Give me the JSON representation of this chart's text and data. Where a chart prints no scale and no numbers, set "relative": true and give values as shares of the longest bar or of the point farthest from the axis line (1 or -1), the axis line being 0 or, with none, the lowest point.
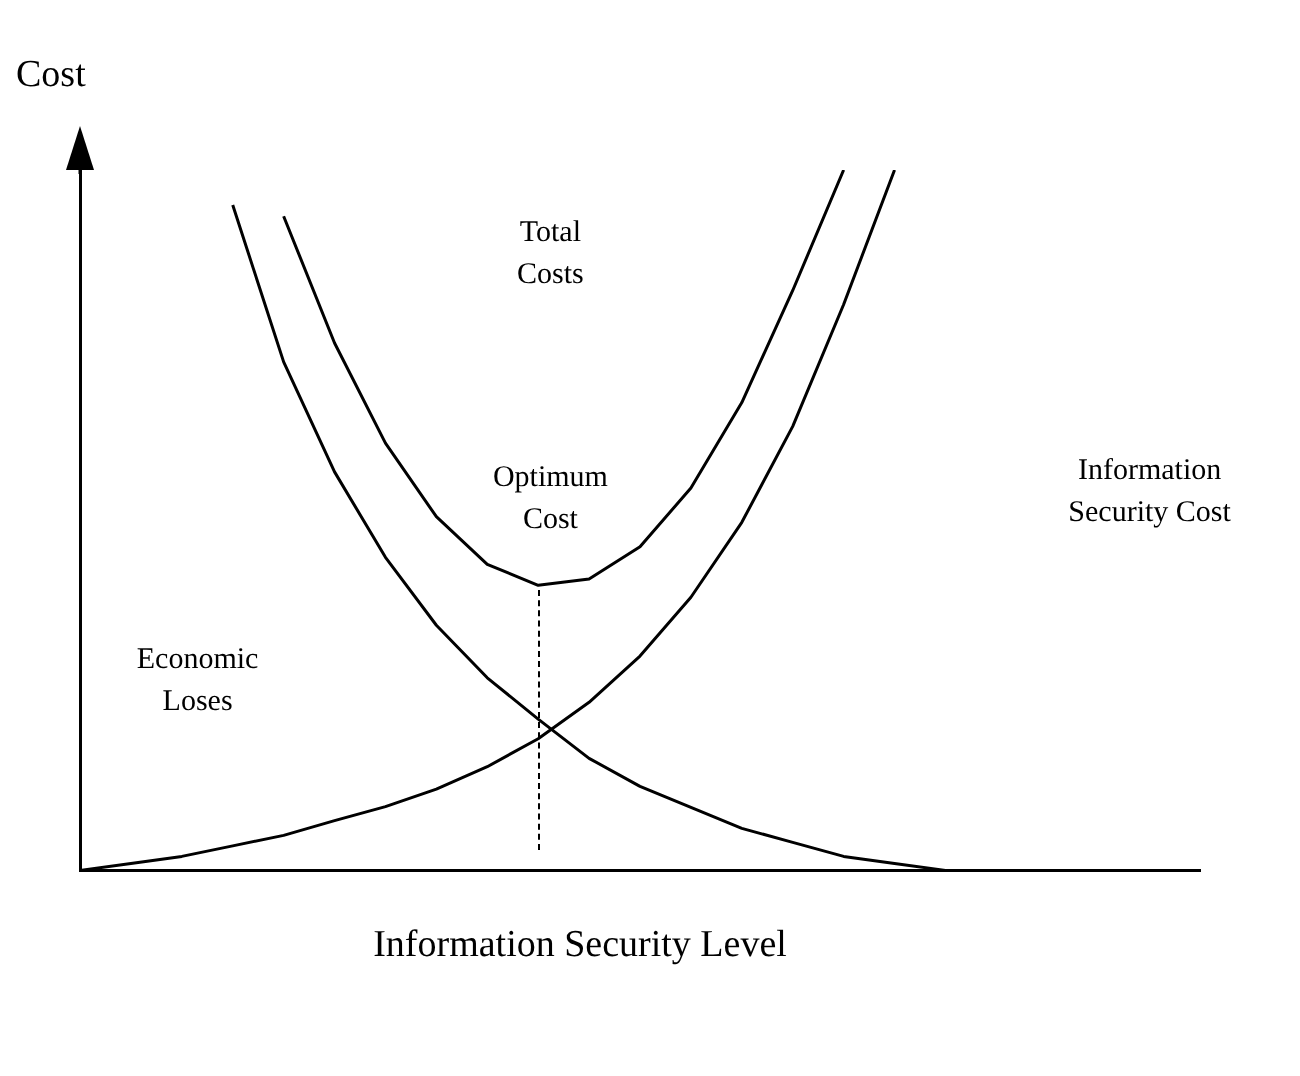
{
  "chart_data": {
    "type": "line",
    "relative": true,
    "xlabel": "Information Security Level",
    "ylabel": "Cost",
    "categories": [
      null,
      null,
      null,
      null,
      null,
      null,
      null,
      null,
      null,
      null,
      null,
      null,
      null,
      null,
      null,
      null,
      null,
      null,
      null,
      null,
      null,
      null,
      null
    ],
    "grid": false,
    "legend": false,
    "marker": "none",
    "line_style": "solid",
    "series": [
      {
        "color": "#000000",
        "values": [
          null,
          null,
          null,
          null,
          0.934,
          0.753,
          0.61,
          0.505,
          0.437,
          0.407,
          0.416,
          0.462,
          0.546,
          0.668,
          0.828,
          1.0,
          null,
          null,
          null,
          null,
          null,
          null,
          null
        ]
      },
      {
        "color": "#000000",
        "values": [
          null,
          null,
          null,
          0.95,
          0.726,
          0.569,
          0.447,
          0.35,
          0.275,
          0.216,
          0.16,
          0.12,
          0.09,
          0.06,
          0.04,
          0.02,
          0.01,
          0,
          0,
          0,
          0,
          0,
          0
        ]
      },
      {
        "color": "#000000",
        "values": [
          0,
          0.01,
          0.02,
          0.035,
          0.05,
          0.071,
          0.091,
          0.116,
          0.148,
          0.188,
          0.24,
          0.306,
          0.39,
          0.497,
          0.634,
          0.808,
          1.0,
          null,
          null,
          null,
          null,
          null,
          null
        ]
      }
    ],
    "annotations": [
      "Total\nCosts",
      "Optimum\nCost",
      "Information\nSecurity Cost",
      "Economic\nLoses"
    ]
  }
}
